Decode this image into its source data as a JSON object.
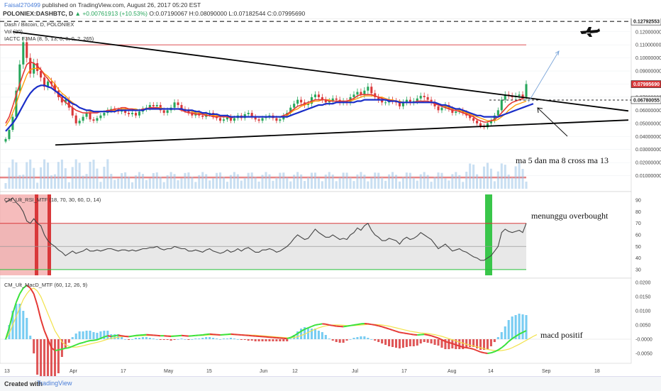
{
  "header": {
    "user": "Faisal270499",
    "published": "published on TradingView.com, August 26, 2017 05:20 EST",
    "symbol": "POLONIEX:DASHBTC, D",
    "change": "▲ +0.00761913 (+10.53%)",
    "ohlc": "O:0.07190067 H:0.08090000 L:0.07182544 C:0.07995690"
  },
  "footer": {
    "created_with": "Created with",
    "brand": "TradingView"
  },
  "colors": {
    "up": "#26a65b",
    "down": "#d9383a",
    "ma_fast": "#e53935",
    "ma_mid": "#ff9800",
    "ma_slow": "#1a2ec8",
    "volume": "#9cc5e8"
  },
  "chart_data": [
    {
      "type": "line",
      "panel": "price",
      "legend": [
        "Dash / Bitcoin, D, POLONIEX",
        "Vol (20)",
        "IACTC F3MA (8, 5, 13, 0, 0, 0, 2, 265)"
      ],
      "x_ticks": [
        "13",
        "Apr",
        "17",
        "May",
        "15",
        "Jun",
        "12",
        "Jul",
        "17",
        "Aug",
        "14",
        "Sep",
        "18"
      ],
      "y_ticks": [
        "0.12000000",
        "0.11000000",
        "0.10000000",
        "0.09000000",
        "0.08000000",
        "0.07000000",
        "0.06000000",
        "0.05000000",
        "0.04000000",
        "0.03000000",
        "0.02000000",
        "0.01000000"
      ],
      "ylim": [
        0.0,
        0.128
      ],
      "price_labels": [
        "0.12792553",
        "0.07995690",
        "0.06780055"
      ],
      "close": [
        0.038,
        0.045,
        0.055,
        0.075,
        0.095,
        0.112,
        0.1,
        0.088,
        0.096,
        0.09,
        0.085,
        0.078,
        0.082,
        0.08,
        0.075,
        0.07,
        0.066,
        0.068,
        0.062,
        0.056,
        0.05,
        0.052,
        0.055,
        0.058,
        0.053,
        0.052,
        0.054,
        0.056,
        0.058,
        0.06,
        0.061,
        0.06,
        0.059,
        0.06,
        0.058,
        0.057,
        0.058,
        0.056,
        0.059,
        0.061,
        0.062,
        0.064,
        0.063,
        0.064,
        0.06,
        0.058,
        0.06,
        0.062,
        0.066,
        0.064,
        0.061,
        0.06,
        0.058,
        0.056,
        0.058,
        0.056,
        0.055,
        0.057,
        0.058,
        0.055,
        0.054,
        0.052,
        0.053,
        0.055,
        0.052,
        0.054,
        0.056,
        0.054,
        0.057,
        0.058,
        0.055,
        0.053,
        0.052,
        0.054,
        0.055,
        0.056,
        0.054,
        0.052,
        0.053,
        0.056,
        0.058,
        0.062,
        0.065,
        0.068,
        0.066,
        0.064,
        0.065,
        0.07,
        0.072,
        0.07,
        0.068,
        0.066,
        0.067,
        0.069,
        0.068,
        0.066,
        0.067,
        0.066,
        0.07,
        0.072,
        0.074,
        0.072,
        0.075,
        0.078,
        0.073,
        0.07,
        0.068,
        0.066,
        0.066,
        0.068,
        0.067,
        0.066,
        0.063,
        0.066,
        0.068,
        0.066,
        0.067,
        0.069,
        0.071,
        0.07,
        0.068,
        0.066,
        0.063,
        0.06,
        0.062,
        0.064,
        0.061,
        0.058,
        0.059,
        0.06,
        0.058,
        0.056,
        0.054,
        0.052,
        0.05,
        0.048,
        0.047,
        0.05,
        0.052,
        0.056,
        0.06,
        0.068,
        0.072,
        0.071,
        0.07,
        0.071,
        0.072,
        0.07,
        0.08
      ],
      "ma_fast": [
        0.05,
        0.055,
        0.063,
        0.072,
        0.08,
        0.088,
        0.095,
        0.097,
        0.096,
        0.094,
        0.091,
        0.087,
        0.084,
        0.08,
        0.076,
        0.072,
        0.069,
        0.066,
        0.064,
        0.062,
        0.06,
        0.059,
        0.058,
        0.058,
        0.058,
        0.058,
        0.058,
        0.059,
        0.059,
        0.06,
        0.06,
        0.061,
        0.061,
        0.062,
        0.062,
        0.061,
        0.061,
        0.06,
        0.06,
        0.061,
        0.061,
        0.062,
        0.062,
        0.062,
        0.061,
        0.061,
        0.061,
        0.061,
        0.061,
        0.061,
        0.06,
        0.059,
        0.058,
        0.058,
        0.057,
        0.057,
        0.057,
        0.056,
        0.056,
        0.055,
        0.055,
        0.055,
        0.055,
        0.055,
        0.054,
        0.055,
        0.055,
        0.055,
        0.055,
        0.055,
        0.055,
        0.055,
        0.055,
        0.055,
        0.055,
        0.055,
        0.055,
        0.055,
        0.055,
        0.056,
        0.057,
        0.059,
        0.061,
        0.063,
        0.064,
        0.065,
        0.066,
        0.067,
        0.068,
        0.068,
        0.068,
        0.068,
        0.067,
        0.067,
        0.067,
        0.067,
        0.067,
        0.067,
        0.068,
        0.069,
        0.071,
        0.072,
        0.072,
        0.072,
        0.072,
        0.071,
        0.07,
        0.069,
        0.068,
        0.068,
        0.067,
        0.067,
        0.066,
        0.066,
        0.066,
        0.066,
        0.066,
        0.067,
        0.067,
        0.067,
        0.067,
        0.066,
        0.065,
        0.064,
        0.063,
        0.062,
        0.061,
        0.06,
        0.06,
        0.059,
        0.058,
        0.057,
        0.056,
        0.055,
        0.053,
        0.052,
        0.051,
        0.051,
        0.052,
        0.053,
        0.055,
        0.058,
        0.061,
        0.064,
        0.066,
        0.067,
        0.068,
        0.069,
        0.07
      ],
      "ma_mid": [
        0.048,
        0.052,
        0.058,
        0.065,
        0.073,
        0.08,
        0.087,
        0.091,
        0.092,
        0.092,
        0.091,
        0.088,
        0.086,
        0.083,
        0.08,
        0.076,
        0.073,
        0.071,
        0.068,
        0.066,
        0.064,
        0.062,
        0.061,
        0.06,
        0.059,
        0.059,
        0.059,
        0.059,
        0.059,
        0.059,
        0.06,
        0.06,
        0.06,
        0.061,
        0.061,
        0.061,
        0.061,
        0.061,
        0.06,
        0.061,
        0.061,
        0.061,
        0.062,
        0.062,
        0.062,
        0.061,
        0.061,
        0.061,
        0.061,
        0.061,
        0.061,
        0.06,
        0.06,
        0.059,
        0.058,
        0.058,
        0.057,
        0.057,
        0.057,
        0.056,
        0.056,
        0.055,
        0.055,
        0.055,
        0.055,
        0.055,
        0.055,
        0.055,
        0.055,
        0.055,
        0.055,
        0.055,
        0.055,
        0.055,
        0.055,
        0.055,
        0.055,
        0.055,
        0.055,
        0.055,
        0.056,
        0.058,
        0.06,
        0.061,
        0.063,
        0.064,
        0.065,
        0.066,
        0.067,
        0.067,
        0.068,
        0.068,
        0.068,
        0.067,
        0.067,
        0.067,
        0.067,
        0.067,
        0.067,
        0.068,
        0.069,
        0.07,
        0.071,
        0.071,
        0.071,
        0.071,
        0.07,
        0.07,
        0.069,
        0.068,
        0.068,
        0.067,
        0.067,
        0.066,
        0.066,
        0.066,
        0.066,
        0.066,
        0.066,
        0.067,
        0.067,
        0.066,
        0.066,
        0.065,
        0.064,
        0.063,
        0.062,
        0.061,
        0.061,
        0.06,
        0.059,
        0.058,
        0.057,
        0.056,
        0.055,
        0.054,
        0.053,
        0.052,
        0.052,
        0.052,
        0.053,
        0.055,
        0.057,
        0.06,
        0.062,
        0.064,
        0.065,
        0.066,
        0.067
      ],
      "ma_slow": [
        0.044,
        0.047,
        0.05,
        0.054,
        0.059,
        0.064,
        0.069,
        0.073,
        0.076,
        0.078,
        0.079,
        0.079,
        0.078,
        0.077,
        0.075,
        0.073,
        0.071,
        0.069,
        0.067,
        0.065,
        0.064,
        0.062,
        0.061,
        0.06,
        0.06,
        0.059,
        0.059,
        0.059,
        0.059,
        0.059,
        0.059,
        0.059,
        0.06,
        0.06,
        0.06,
        0.06,
        0.06,
        0.06,
        0.06,
        0.06,
        0.061,
        0.061,
        0.061,
        0.061,
        0.061,
        0.061,
        0.061,
        0.061,
        0.061,
        0.061,
        0.061,
        0.06,
        0.06,
        0.06,
        0.059,
        0.059,
        0.058,
        0.058,
        0.057,
        0.057,
        0.057,
        0.056,
        0.056,
        0.056,
        0.055,
        0.055,
        0.055,
        0.055,
        0.055,
        0.055,
        0.055,
        0.055,
        0.055,
        0.055,
        0.055,
        0.055,
        0.055,
        0.055,
        0.055,
        0.055,
        0.055,
        0.056,
        0.057,
        0.058,
        0.059,
        0.06,
        0.061,
        0.062,
        0.063,
        0.064,
        0.064,
        0.065,
        0.065,
        0.065,
        0.066,
        0.066,
        0.066,
        0.066,
        0.066,
        0.066,
        0.067,
        0.067,
        0.068,
        0.068,
        0.068,
        0.068,
        0.068,
        0.068,
        0.068,
        0.067,
        0.067,
        0.067,
        0.066,
        0.066,
        0.066,
        0.066,
        0.066,
        0.066,
        0.066,
        0.066,
        0.066,
        0.066,
        0.066,
        0.065,
        0.064,
        0.064,
        0.063,
        0.062,
        0.061,
        0.061,
        0.06,
        0.059,
        0.058,
        0.057,
        0.056,
        0.056,
        0.055,
        0.055,
        0.055,
        0.055,
        0.055,
        0.056,
        0.057,
        0.058,
        0.059,
        0.06,
        0.061,
        0.062,
        0.063,
        0.064,
        0.065
      ]
    },
    {
      "type": "line",
      "panel": "rsi",
      "legend": "CM_Ult_RSI_MTF (18, 70, 30, 60, D, 14)",
      "y_ticks": [
        "90",
        "80",
        "70",
        "60",
        "50",
        "40",
        "30"
      ],
      "ylim": [
        25,
        95
      ],
      "levels": [
        30,
        50,
        70
      ],
      "values": [
        88,
        90,
        92,
        88,
        85,
        80,
        72,
        70,
        74,
        70,
        68,
        60,
        55,
        52,
        50,
        47,
        45,
        42,
        44,
        46,
        44,
        45,
        46,
        48,
        46,
        46,
        47,
        46,
        47,
        48,
        48,
        47,
        46,
        47,
        47,
        46,
        47,
        46,
        47,
        48,
        48,
        49,
        49,
        50,
        48,
        47,
        48,
        48,
        50,
        49,
        48,
        48,
        46,
        46,
        47,
        46,
        45,
        47,
        48,
        46,
        45,
        44,
        45,
        47,
        45,
        46,
        48,
        46,
        48,
        49,
        47,
        45,
        45,
        47,
        47,
        48,
        47,
        45,
        46,
        48,
        50,
        53,
        57,
        60,
        58,
        56,
        57,
        61,
        65,
        62,
        60,
        58,
        58,
        60,
        58,
        56,
        57,
        56,
        60,
        62,
        66,
        64,
        68,
        70,
        64,
        60,
        58,
        55,
        55,
        57,
        56,
        55,
        52,
        56,
        58,
        56,
        57,
        59,
        62,
        60,
        58,
        56,
        52,
        48,
        50,
        52,
        49,
        46,
        47,
        48,
        46,
        45,
        43,
        41,
        40,
        38,
        38,
        40,
        42,
        46,
        50,
        62,
        65,
        63,
        62,
        63,
        64,
        62,
        70
      ]
    },
    {
      "type": "bar",
      "panel": "macd",
      "legend": "CM_Ult_MacD_MTF (60, 12, 26, 9)",
      "y_ticks": [
        "0.0200",
        "0.0150",
        "0.0100",
        "0.0050",
        "-0.0000",
        "-0.0050"
      ],
      "ylim": [
        -0.0075,
        0.0205
      ],
      "macd": [
        0.0,
        0.004,
        0.009,
        0.013,
        0.016,
        0.018,
        0.019,
        0.018,
        0.016,
        0.012,
        0.007,
        0.003,
        0.0,
        -0.003,
        -0.004,
        -0.0038,
        -0.0035,
        -0.0032,
        -0.003,
        -0.0025,
        -0.002,
        -0.0015,
        -0.0012,
        -0.0008,
        -0.0005,
        -0.0004,
        -0.0002,
        0.0003,
        0.0008,
        0.0012,
        0.001,
        0.0012,
        0.0014,
        0.0012,
        0.001,
        0.0009,
        0.0011,
        0.0013,
        0.0014,
        0.0015,
        0.0016,
        0.0015,
        0.0014,
        0.0013,
        0.0012,
        0.0012,
        0.0011,
        0.001,
        0.0011,
        0.0012,
        0.0013,
        0.0012,
        0.0011,
        0.0012,
        0.0013,
        0.0014,
        0.0015,
        0.0017,
        0.0018,
        0.0017,
        0.0016,
        0.0015,
        0.0016,
        0.0017,
        0.0018,
        0.0017,
        0.0016,
        0.0015,
        0.0014,
        0.0013,
        0.0012,
        0.0011,
        0.001,
        0.0009,
        0.0008,
        0.0007,
        0.0006,
        0.0005,
        0.0004,
        0.0003,
        0.0002,
        0.0006,
        0.0012,
        0.002,
        0.0028,
        0.0035,
        0.004,
        0.0045,
        0.005,
        0.0052,
        0.0054,
        0.0053,
        0.005,
        0.0048,
        0.0046,
        0.0045,
        0.0044,
        0.0046,
        0.0048,
        0.005,
        0.0052,
        0.0054,
        0.0055,
        0.0054,
        0.0052,
        0.005,
        0.0047,
        0.0044,
        0.004,
        0.0036,
        0.0032,
        0.0028,
        0.0024,
        0.0022,
        0.002,
        0.0018,
        0.0016,
        0.0015,
        0.0016,
        0.0017,
        0.0015,
        0.0012,
        0.0008,
        0.0004,
        -0.0002,
        -0.0008,
        -0.0012,
        -0.0015,
        -0.002,
        -0.0024,
        -0.0028,
        -0.003,
        -0.0032,
        -0.0035,
        -0.004,
        -0.0045,
        -0.0048,
        -0.005,
        -0.0048,
        -0.0044,
        -0.0038,
        -0.003,
        -0.002,
        -0.0008,
        0.0002,
        0.001,
        0.0018,
        0.0024,
        0.003,
        0.0036,
        0.0042
      ],
      "signal": [
        0.0,
        0.002,
        0.005,
        0.008,
        0.011,
        0.014,
        0.016,
        0.0175,
        0.018,
        0.017,
        0.015,
        0.012,
        0.009,
        0.006,
        0.003,
        0.001,
        -0.001,
        -0.002,
        -0.0025,
        -0.0028,
        -0.0028,
        -0.0026,
        -0.0023,
        -0.002,
        -0.0017,
        -0.0014,
        -0.0011,
        -0.0008,
        -0.0004,
        0.0,
        0.0003,
        0.0005,
        0.0007,
        0.0009,
        0.001,
        0.001,
        0.0011,
        0.0011,
        0.0012,
        0.0012,
        0.0013,
        0.0013,
        0.0013,
        0.0013,
        0.0013,
        0.0013,
        0.0012,
        0.0012,
        0.0012,
        0.0012,
        0.0012,
        0.0012,
        0.0012,
        0.0012,
        0.0012,
        0.0013,
        0.0013,
        0.0014,
        0.0015,
        0.0015,
        0.0015,
        0.0015,
        0.0015,
        0.0016,
        0.0016,
        0.0016,
        0.0016,
        0.0016,
        0.0015,
        0.0015,
        0.0014,
        0.0014,
        0.0013,
        0.0012,
        0.0011,
        0.001,
        0.0009,
        0.0008,
        0.0007,
        0.0006,
        0.0005,
        0.0005,
        0.0006,
        0.0009,
        0.0013,
        0.0018,
        0.0024,
        0.003,
        0.0035,
        0.004,
        0.0044,
        0.0047,
        0.0049,
        0.005,
        0.005,
        0.005,
        0.0049,
        0.0048,
        0.0048,
        0.0048,
        0.0049,
        0.005,
        0.0051,
        0.0052,
        0.0052,
        0.0052,
        0.0051,
        0.005,
        0.0048,
        0.0046,
        0.0043,
        0.004,
        0.0037,
        0.0034,
        0.0031,
        0.0028,
        0.0026,
        0.0024,
        0.0022,
        0.0021,
        0.002,
        0.0018,
        0.0016,
        0.0013,
        0.001,
        0.0006,
        0.0002,
        -0.0002,
        -0.0006,
        -0.001,
        -0.0014,
        -0.0018,
        -0.0021,
        -0.0024,
        -0.0027,
        -0.003,
        -0.0033,
        -0.0036,
        -0.0038,
        -0.004,
        -0.0041,
        -0.004,
        -0.0038,
        -0.0035,
        -0.003,
        -0.0024,
        -0.0018,
        -0.0011,
        -0.0004,
        0.0003,
        0.001,
        0.0016
      ]
    }
  ],
  "annotations": {
    "ma_cross": "ma 5 dan ma 8 cross ma 13",
    "rsi_note": "menunggu overbought",
    "macd_note": "macd positif"
  }
}
